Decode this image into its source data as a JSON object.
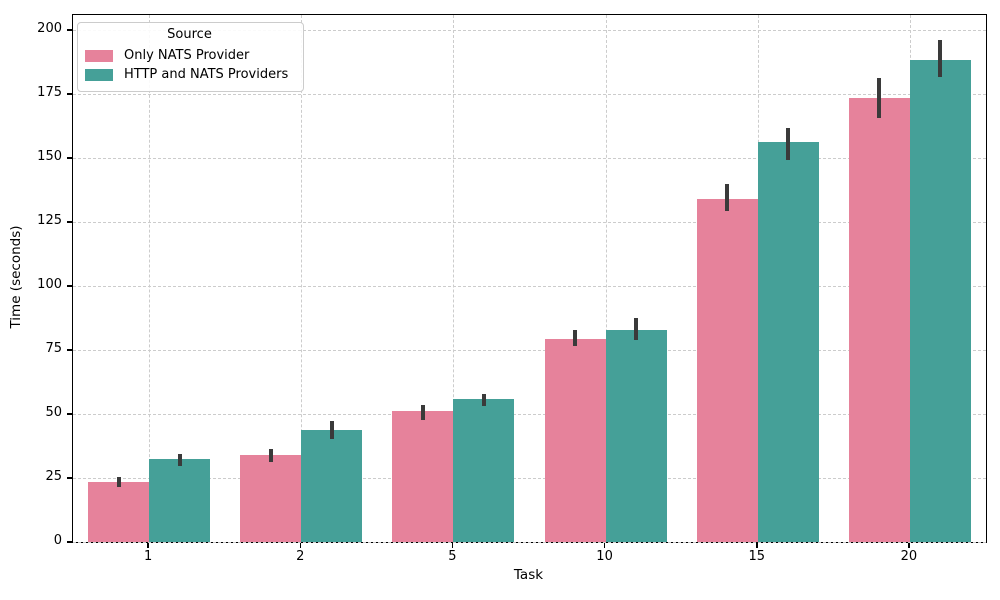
{
  "figure": {
    "background": "#ffffff",
    "grid_color": "#cccccc",
    "spine_color": "#000000",
    "error_bar_color": "#3a3a3a"
  },
  "chart_data": {
    "type": "bar",
    "title": "",
    "xlabel": "Task",
    "ylabel": "Time (seconds)",
    "categories": [
      "1",
      "2",
      "5",
      "10",
      "15",
      "20"
    ],
    "series": [
      {
        "name": "Only NATS Provider",
        "color": "#e6829b",
        "values": [
          23.5,
          33.9,
          51.2,
          79.3,
          134.1,
          173.3
        ],
        "err_low": [
          21.6,
          31.3,
          47.5,
          76.6,
          129.3,
          165.7
        ],
        "err_high": [
          25.2,
          36.4,
          53.5,
          82.7,
          139.7,
          181.4
        ]
      },
      {
        "name": "HTTP and NATS Providers",
        "color": "#45a098",
        "values": [
          32.5,
          43.6,
          55.7,
          82.9,
          156.3,
          188.2
        ],
        "err_low": [
          29.7,
          40.1,
          53.1,
          78.8,
          149.2,
          181.6
        ],
        "err_high": [
          34.5,
          47.3,
          57.7,
          87.6,
          161.8,
          196.0
        ]
      }
    ],
    "ylim": [
      0,
      200
    ],
    "yticks": [
      0,
      25,
      50,
      75,
      100,
      125,
      150,
      175,
      200
    ],
    "grid": true,
    "legend": {
      "title": "Source",
      "position": "upper left"
    }
  }
}
